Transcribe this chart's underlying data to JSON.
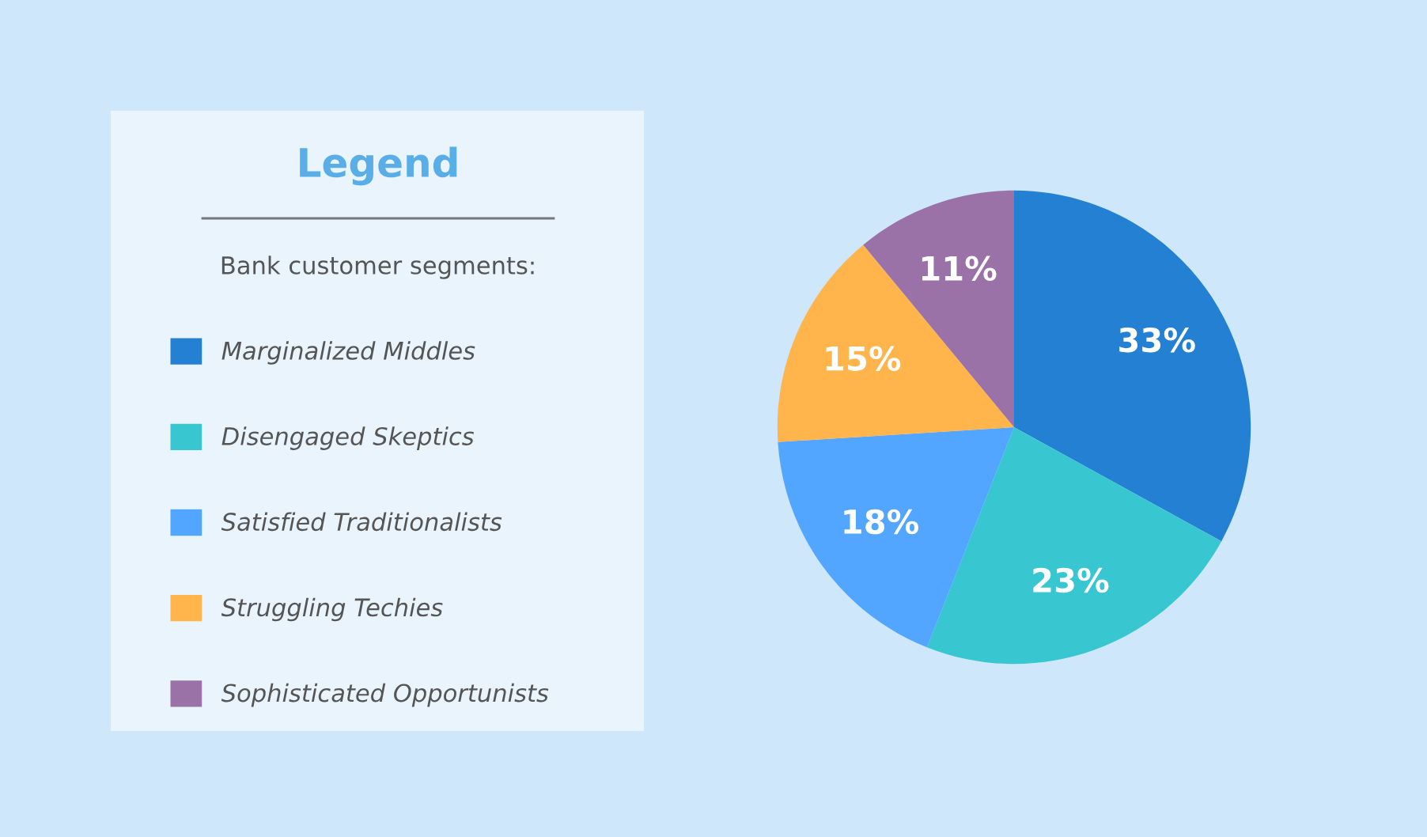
{
  "chart_data": {
    "type": "pie",
    "title": "Legend",
    "legend_title": "Bank customer segments:",
    "categories": [
      "Marginalized Middles",
      "Disengaged Skeptics",
      "Satisfied Traditionalists",
      "Struggling Techies",
      "Sophisticated Opportunists"
    ],
    "values": [
      33,
      23,
      18,
      15,
      11
    ],
    "colors": [
      "#2380d3",
      "#38c6d0",
      "#52a6ff",
      "#ffb54c",
      "#9b72a8"
    ],
    "value_labels": [
      "33%",
      "23%",
      "18%",
      "15%",
      "11%"
    ],
    "legend": "left"
  }
}
